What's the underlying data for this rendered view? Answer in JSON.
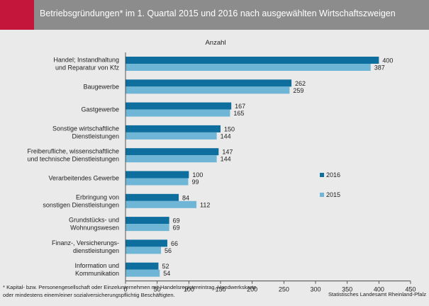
{
  "header": {
    "title": "Betriebsgründungen* im 1. Quartal 2015 und 2016 nach ausgewählten Wirtschaftszweigen"
  },
  "footnote": {
    "text": "* Kapital- bzw. Personengesellschaft oder Einzelunternehmen mit Handelsregistereintrag, Handwerkskarte oder mindestens einem/einer sozialversicherungspflichtig Beschäftigten."
  },
  "source": {
    "text": "Statistisches Landesamt Rheinland-Pfalz"
  },
  "colors": {
    "header_bg": "#8c8c8c",
    "accent": "#c4153a",
    "series_2016": "#0e6e9e",
    "series_2015": "#6fb6d6",
    "background": "#eaeaea"
  },
  "chart_data": {
    "type": "bar",
    "orientation": "horizontal",
    "title": "Anzahl",
    "categories": [
      [
        "Handel; Instandhaltung",
        "und Reparatur von Kfz"
      ],
      [
        "Baugewerbe"
      ],
      [
        "Gastgewerbe"
      ],
      [
        "Sonstige wirtschaftliche",
        "Dienstleistungen"
      ],
      [
        "Freiberufliche, wissenschaftliche",
        "und technische Dienstleistungen"
      ],
      [
        "Verarbeitendes Gewerbe"
      ],
      [
        "Erbringung von",
        "sonstigen Dienstleistungen"
      ],
      [
        "Grundstücks- und",
        "Wohnungswesen"
      ],
      [
        "Finanz-, Versicherungs-",
        "dienstleistungen"
      ],
      [
        "Information und",
        "Kommunikation"
      ]
    ],
    "series": [
      {
        "name": "2016",
        "color": "#0e6e9e",
        "values": [
          400,
          262,
          167,
          150,
          147,
          100,
          84,
          69,
          66,
          52
        ]
      },
      {
        "name": "2015",
        "color": "#6fb6d6",
        "values": [
          387,
          259,
          165,
          144,
          144,
          99,
          112,
          69,
          56,
          54
        ]
      }
    ],
    "xlim": [
      0,
      450
    ],
    "xticks": [
      0,
      50,
      100,
      150,
      200,
      250,
      300,
      350,
      400,
      450
    ],
    "grid": false,
    "legend_position": "right-middle"
  }
}
